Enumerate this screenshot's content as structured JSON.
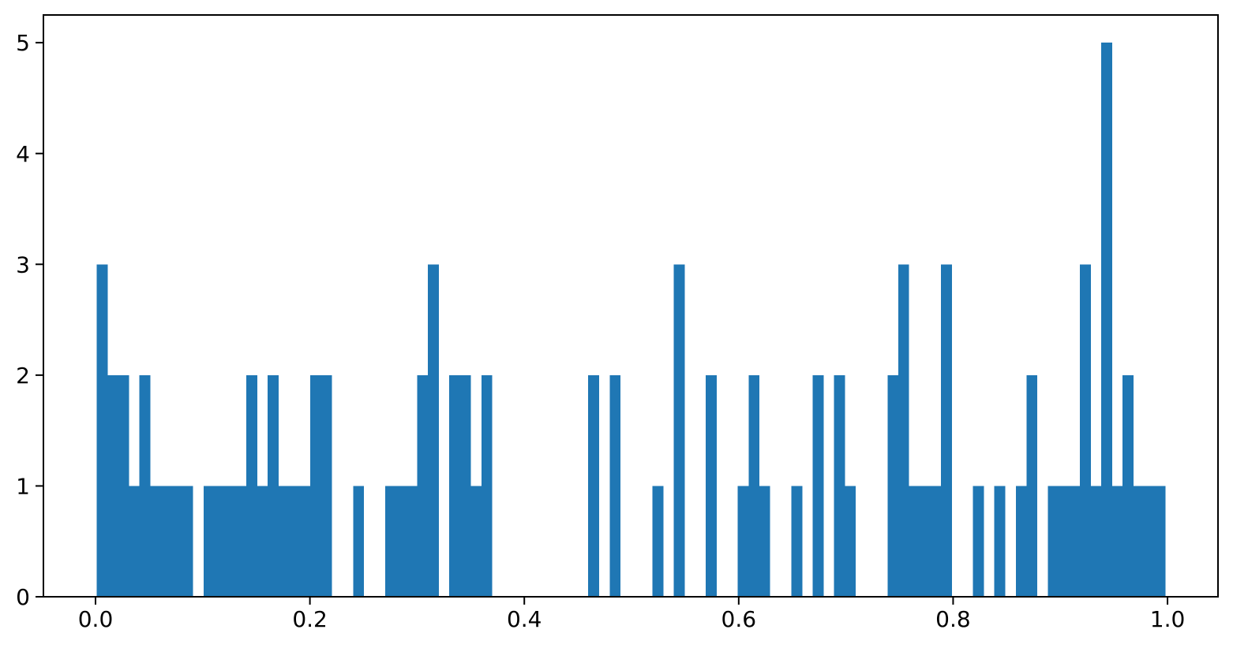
{
  "chart_data": {
    "type": "bar",
    "subtype": "histogram",
    "title": "",
    "xlabel": "",
    "ylabel": "",
    "bin_start": 0.001,
    "bin_width": 0.00997,
    "n_bins": 100,
    "counts": [
      3,
      2,
      2,
      1,
      2,
      1,
      1,
      1,
      1,
      0,
      1,
      1,
      1,
      1,
      2,
      1,
      2,
      1,
      1,
      1,
      2,
      2,
      0,
      0,
      1,
      0,
      0,
      1,
      1,
      1,
      2,
      3,
      0,
      2,
      2,
      1,
      2,
      0,
      0,
      0,
      0,
      0,
      0,
      0,
      0,
      0,
      2,
      0,
      2,
      0,
      0,
      0,
      1,
      0,
      3,
      0,
      0,
      2,
      0,
      0,
      1,
      2,
      1,
      0,
      0,
      1,
      0,
      2,
      0,
      2,
      1,
      0,
      0,
      0,
      2,
      3,
      1,
      1,
      1,
      3,
      0,
      0,
      1,
      0,
      1,
      0,
      1,
      2,
      0,
      1,
      1,
      1,
      3,
      1,
      5,
      1,
      2,
      1,
      1,
      1
    ],
    "x_ticks": [
      0.0,
      0.2,
      0.4,
      0.6,
      0.8,
      1.0
    ],
    "x_tick_labels": [
      "0.0",
      "0.2",
      "0.4",
      "0.6",
      "0.8",
      "1.0"
    ],
    "y_ticks": [
      0,
      1,
      2,
      3,
      4,
      5
    ],
    "y_tick_labels": [
      "0",
      "1",
      "2",
      "3",
      "4",
      "5"
    ],
    "xlim": [
      -0.0486,
      1.0471
    ],
    "ylim": [
      0,
      5.25
    ],
    "grid": false,
    "legend": false,
    "colors": {
      "bar": "#1f77b4",
      "axis": "#000000",
      "tick_label": "#000000",
      "background": "#ffffff"
    }
  }
}
